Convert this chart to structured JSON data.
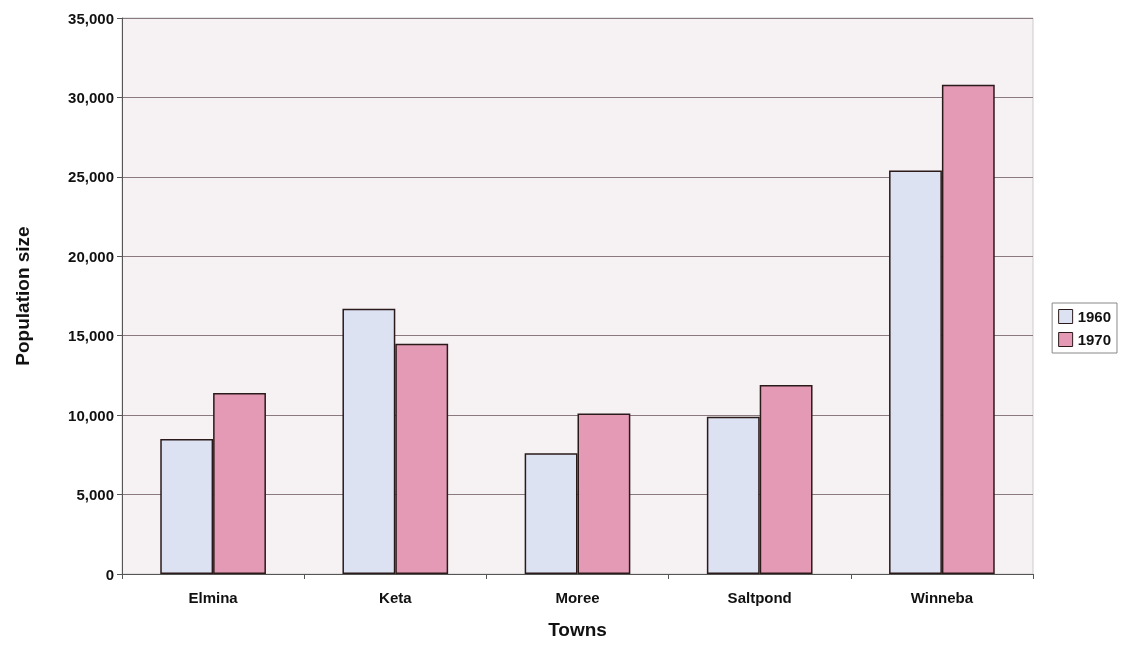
{
  "chart_data": {
    "type": "bar",
    "xlabel": "Towns",
    "ylabel": "Population size",
    "categories": [
      "Elmina",
      "Keta",
      "Moree",
      "Saltpond",
      "Winneba"
    ],
    "series": [
      {
        "name": "1960",
        "color": "#dde2f2",
        "values": [
          8500,
          16700,
          7600,
          9900,
          25400
        ]
      },
      {
        "name": "1970",
        "color": "#e49ab5",
        "values": [
          11400,
          14500,
          10100,
          11900,
          30800
        ]
      }
    ],
    "ylim": [
      0,
      35000
    ],
    "yticks": [
      0,
      {
        "value": 5000,
        "label": "5,000"
      },
      {
        "value": 10000,
        "label": "10,000"
      },
      {
        "value": 15000,
        "label": "15,000"
      },
      {
        "value": 20000,
        "label": "20,000"
      },
      {
        "value": 25000,
        "label": "25,000"
      },
      {
        "value": 30000,
        "label": "30,000"
      },
      {
        "value": 35000,
        "label": "35,000"
      }
    ],
    "grid": "y",
    "legend": "right"
  }
}
